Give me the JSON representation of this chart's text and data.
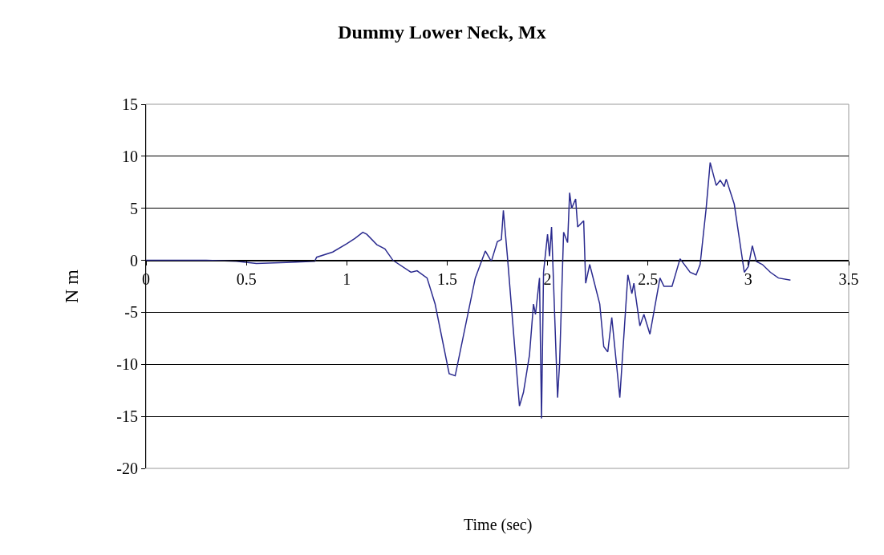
{
  "chart_data": {
    "type": "line",
    "title": "Dummy Lower Neck, Mx",
    "xlabel": "Time (sec)",
    "ylabel": "N m",
    "xlim": [
      0,
      3.5
    ],
    "xticks": [
      0,
      0.5,
      1,
      1.5,
      2,
      2.5,
      3,
      3.5
    ],
    "ylim": [
      -20,
      15
    ],
    "yticks": [
      -20,
      -15,
      -10,
      -5,
      0,
      5,
      10,
      15
    ],
    "grid": "y",
    "marker": "none",
    "line_style": "solid",
    "series": [
      {
        "color": "#2b2b8f",
        "x": [
          0,
          0.3,
          0.45,
          0.55,
          0.7,
          0.84,
          0.85,
          0.93,
          1.0,
          1.04,
          1.08,
          1.1,
          1.15,
          1.19,
          1.23,
          1.32,
          1.35,
          1.4,
          1.44,
          1.51,
          1.54,
          1.64,
          1.69,
          1.72,
          1.75,
          1.77,
          1.78,
          1.8,
          1.86,
          1.88,
          1.91,
          1.93,
          1.94,
          1.96,
          1.97,
          1.98,
          2.0,
          2.01,
          2.02,
          2.05,
          2.06,
          2.08,
          2.1,
          2.11,
          2.12,
          2.14,
          2.15,
          2.18,
          2.19,
          2.21,
          2.26,
          2.28,
          2.3,
          2.32,
          2.36,
          2.4,
          2.42,
          2.43,
          2.46,
          2.48,
          2.51,
          2.56,
          2.58,
          2.62,
          2.66,
          2.71,
          2.74,
          2.76,
          2.79,
          2.81,
          2.84,
          2.86,
          2.88,
          2.89,
          2.93,
          2.98,
          3.0,
          3.02,
          3.04,
          3.07,
          3.11,
          3.15,
          3.21
        ],
        "values": [
          0,
          0,
          -0.1,
          -0.3,
          -0.2,
          -0.1,
          0.3,
          0.8,
          1.6,
          2.1,
          2.7,
          2.5,
          1.5,
          1.1,
          0,
          -1.15,
          -1.0,
          -1.7,
          -4.2,
          -10.9,
          -11.1,
          -1.7,
          0.9,
          -0.1,
          1.8,
          2.0,
          4.8,
          0.4,
          -14.0,
          -12.7,
          -9.1,
          -4.2,
          -5.2,
          -1.7,
          -15.2,
          -1.15,
          2.5,
          0.4,
          3.2,
          -13.2,
          -9.9,
          2.7,
          1.7,
          6.5,
          5.0,
          5.9,
          3.2,
          3.8,
          -2.2,
          -0.4,
          -4.2,
          -8.3,
          -8.8,
          -5.5,
          -13.2,
          -1.4,
          -3.2,
          -2.2,
          -6.3,
          -5.2,
          -7.1,
          -1.7,
          -2.5,
          -2.5,
          0.15,
          -1.15,
          -1.4,
          -0.4,
          5.0,
          9.4,
          7.2,
          7.7,
          7.1,
          7.8,
          5.4,
          -1.15,
          -0.6,
          1.4,
          -0.1,
          -0.4,
          -1.15,
          -1.7,
          -1.9
        ]
      }
    ]
  }
}
